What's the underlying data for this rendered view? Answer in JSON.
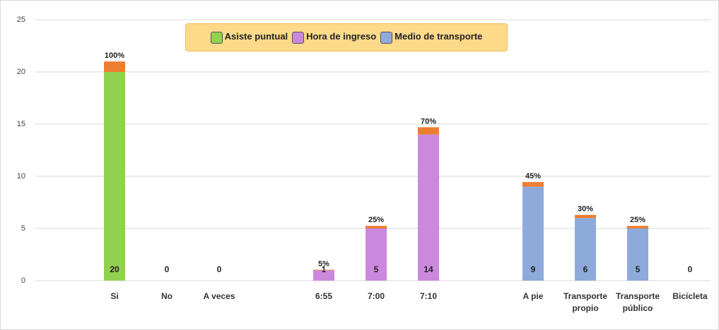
{
  "chart_data": {
    "type": "bar",
    "stacked": true,
    "categories": [
      "Si",
      "No",
      "A veces",
      null,
      "6:55",
      "7:00",
      "7:10",
      null,
      "A pie",
      "Transporte propio",
      "Transporte público",
      "Bicicleta"
    ],
    "series": [
      {
        "name": "Asiste puntual",
        "color": "#92d050",
        "values": [
          20,
          0,
          0,
          null,
          null,
          null,
          null,
          null,
          null,
          null,
          null,
          null
        ]
      },
      {
        "name": "Hora de ingreso",
        "color": "#cc88dd",
        "values": [
          null,
          null,
          null,
          null,
          1,
          5,
          14,
          null,
          null,
          null,
          null,
          null
        ]
      },
      {
        "name": "Medio de transporte",
        "color": "#8eaadb",
        "values": [
          null,
          null,
          null,
          null,
          null,
          null,
          null,
          null,
          9,
          6,
          5,
          0
        ]
      },
      {
        "color": "#ed7d31",
        "values": [
          1,
          null,
          null,
          null,
          0.05,
          0.25,
          0.7,
          null,
          0.45,
          0.3,
          0.25,
          null
        ],
        "value_labels": [
          "100%",
          null,
          null,
          null,
          "5%",
          "25%",
          "70%",
          null,
          "45%",
          "30%",
          "25%",
          null
        ]
      }
    ],
    "ylim": [
      0,
      25
    ],
    "yticks": [
      0,
      5,
      10,
      15,
      20,
      25
    ],
    "grid": true,
    "legend": "top"
  }
}
